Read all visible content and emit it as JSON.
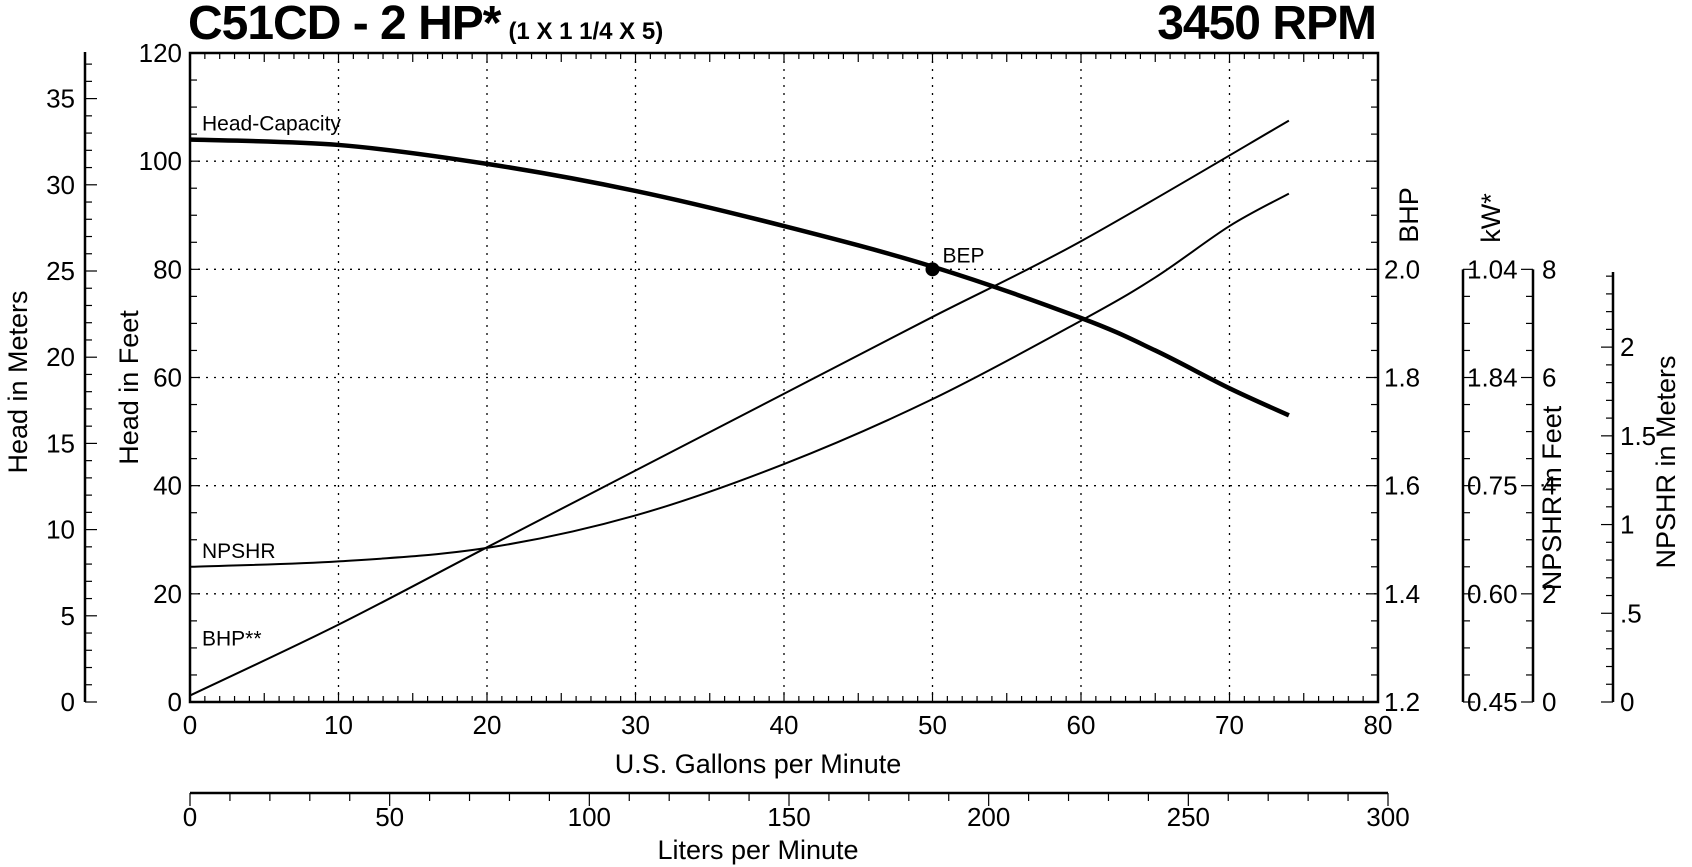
{
  "title": {
    "model": "C51CD - 2 HP*",
    "size": "(1 X 1 1/4 X 5)",
    "speed": "3450 RPM"
  },
  "chart_data": {
    "type": "line",
    "grid": true,
    "x": {
      "label": "U.S. Gallons per Minute",
      "range": [
        0,
        80
      ],
      "ticks": [
        "0",
        "10",
        "20",
        "30",
        "40",
        "50",
        "60",
        "70",
        "80"
      ]
    },
    "x2": {
      "label": "Liters per Minute",
      "ticks": [
        "0",
        "50",
        "100",
        "150",
        "200",
        "250",
        "300"
      ]
    },
    "y_left_feet": {
      "label": "Head in Feet",
      "range": [
        0,
        120
      ],
      "ticks": [
        "0",
        "20",
        "40",
        "60",
        "80",
        "100",
        "120"
      ]
    },
    "y_left_meters": {
      "label": "Head in Meters",
      "ticks": [
        "0",
        "5",
        "10",
        "15",
        "20",
        "25",
        "30",
        "35"
      ]
    },
    "y_right_bhp": {
      "label": "BHP",
      "range": [
        1.2,
        2.0
      ],
      "ticks": [
        "1.2",
        "1.4",
        "1.6",
        "1.8",
        "2.0"
      ]
    },
    "y_right_kw": {
      "label": "kW*",
      "ticks": [
        "0.45",
        "0.60",
        "0.75",
        "1.84",
        "1.04"
      ]
    },
    "y_right_npshr_feet": {
      "label": "NPSHR in Feet",
      "range": [
        0,
        8
      ],
      "ticks": [
        "0",
        "2",
        "4",
        "6",
        "8"
      ]
    },
    "y_right_npshr_meters": {
      "label": "NPSHR in Meters",
      "ticks": [
        "0",
        ".5",
        "1",
        "1.5",
        "2"
      ]
    },
    "series": [
      {
        "name": "Head-Capacity",
        "axis": "feet",
        "points": [
          [
            0,
            104
          ],
          [
            10,
            103
          ],
          [
            20,
            99.5
          ],
          [
            30,
            94.5
          ],
          [
            40,
            88
          ],
          [
            50,
            80.5
          ],
          [
            60,
            71
          ],
          [
            65,
            65
          ],
          [
            70,
            58
          ],
          [
            74,
            53
          ]
        ]
      },
      {
        "name": "NPSHR",
        "axis": "feet",
        "points": [
          [
            0,
            25
          ],
          [
            10,
            26
          ],
          [
            20,
            28.5
          ],
          [
            30,
            34.5
          ],
          [
            40,
            44
          ],
          [
            50,
            56
          ],
          [
            60,
            70.5
          ],
          [
            65,
            78.5
          ],
          [
            70,
            88
          ],
          [
            74,
            94
          ]
        ]
      },
      {
        "name": "BHP**",
        "axis": "feet",
        "points": [
          [
            0,
            1.2
          ],
          [
            10,
            14.3
          ],
          [
            20,
            28.6
          ],
          [
            30,
            42.8
          ],
          [
            40,
            57
          ],
          [
            50,
            71.2
          ],
          [
            60,
            85.2
          ],
          [
            74,
            107.5
          ]
        ]
      }
    ],
    "annotations": [
      {
        "label": "BEP",
        "x": 50,
        "y": 80
      }
    ]
  }
}
